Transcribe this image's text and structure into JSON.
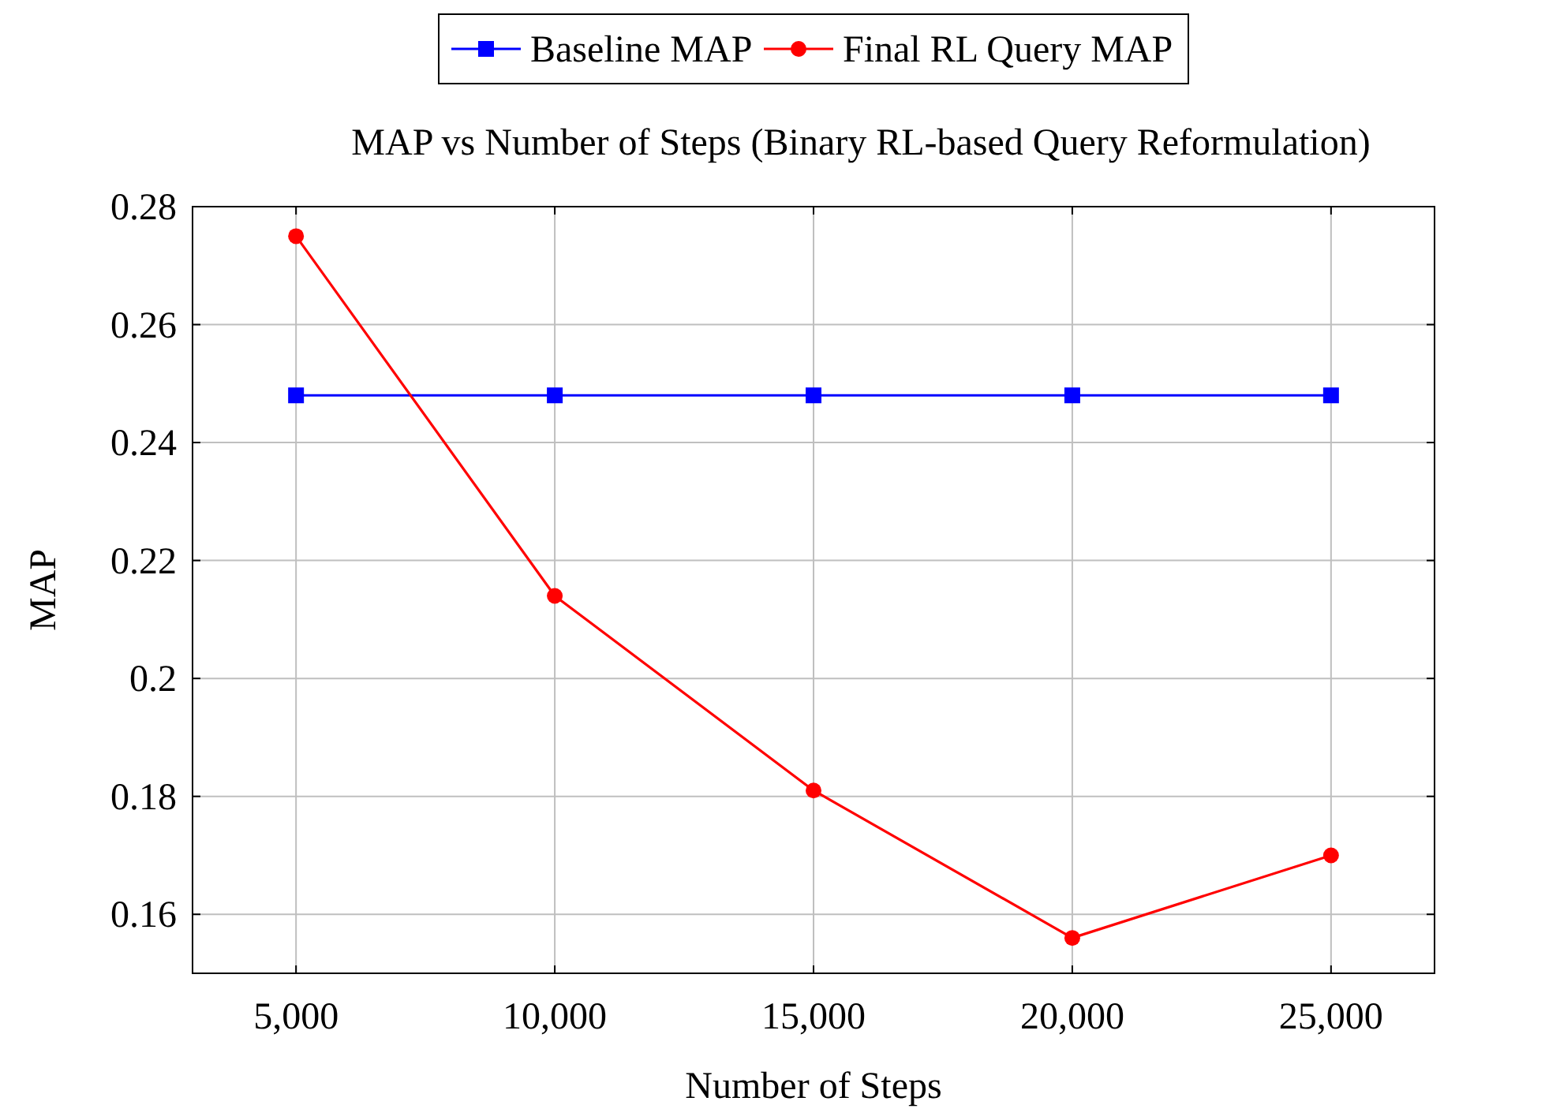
{
  "chart_data": {
    "type": "line",
    "title": "MAP vs Number of Steps (Binary RL-based Query Reformulation)",
    "xlabel": "Number of Steps",
    "ylabel": "MAP",
    "x": [
      5000,
      10000,
      15000,
      20000,
      25000
    ],
    "series": [
      {
        "name": "Baseline MAP",
        "color": "#0000ff",
        "marker": "square",
        "values": [
          0.248,
          0.248,
          0.248,
          0.248,
          0.248
        ]
      },
      {
        "name": "Final RL Query MAP",
        "color": "#ff0000",
        "marker": "circle",
        "values": [
          0.275,
          0.214,
          0.181,
          0.156,
          0.17
        ]
      }
    ],
    "xlim": [
      3000,
      27000
    ],
    "xticks": [
      {
        "value": 5000,
        "label": "5,000"
      },
      {
        "value": 10000,
        "label": "10,000"
      },
      {
        "value": 15000,
        "label": "15,000"
      },
      {
        "value": 20000,
        "label": "20,000"
      },
      {
        "value": 25000,
        "label": "25,000"
      }
    ],
    "ylim": [
      0.15,
      0.28
    ],
    "yticks": [
      0.16,
      0.18,
      {
        "value": 0.2,
        "label": "0.2"
      },
      0.22,
      0.24,
      0.26,
      0.28
    ],
    "grid": true,
    "legend": "top",
    "line_style": "solid"
  }
}
